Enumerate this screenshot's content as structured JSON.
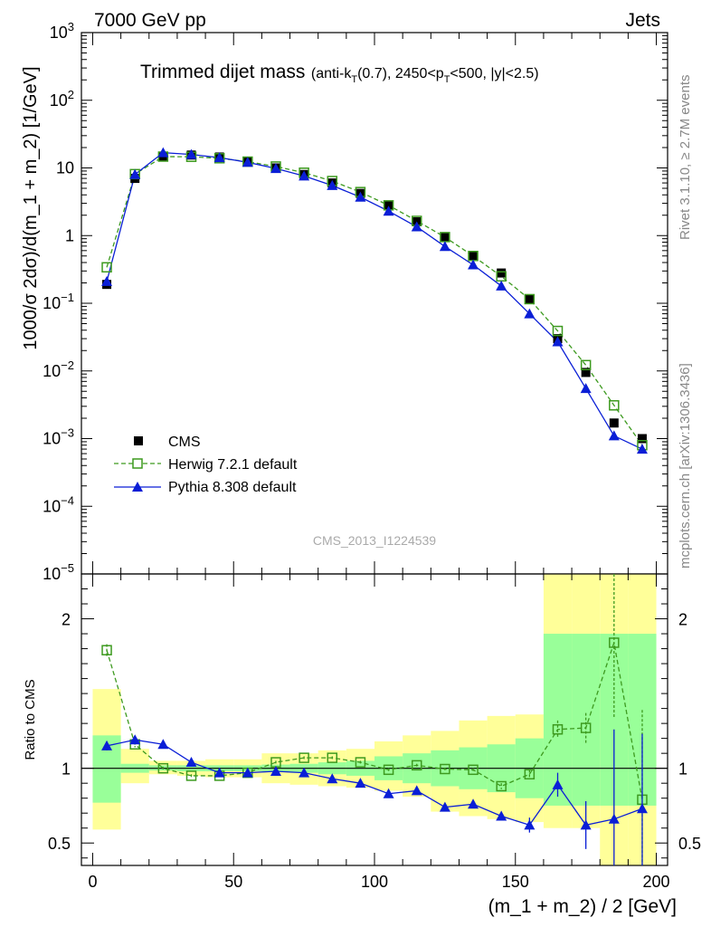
{
  "header": {
    "left": "7000 GeV pp",
    "right": "Jets"
  },
  "side_labels": {
    "rivet": "Rivet 3.1.10, ≥ 2.7M events",
    "mcplots": "mcplots.cern.ch [arXiv:1306.3436]"
  },
  "chart_data": [
    {
      "type": "line",
      "title_main": "Trimmed dijet mass",
      "title_sub_parts": [
        "(anti-k",
        "T",
        "(0.7), 2450<p",
        "T",
        "<500, |y|<2.5)"
      ],
      "watermark": "CMS_2013_I1224539",
      "ylabel": "1000/σ 2dσ)/d(m_1 + m_2) [1/GeV]",
      "yscale": "log",
      "ylim": [
        1e-05,
        1000
      ],
      "xlim": [
        -4,
        204
      ],
      "ytick_labels": [
        {
          "mant": "10",
          "exp": "−5",
          "value": 1e-05
        },
        {
          "mant": "10",
          "exp": "−4",
          "value": 0.0001
        },
        {
          "mant": "10",
          "exp": "−3",
          "value": 0.001
        },
        {
          "mant": "10",
          "exp": "−2",
          "value": 0.01
        },
        {
          "mant": "10",
          "exp": "−1",
          "value": 0.1
        },
        {
          "mant": "1",
          "exp": "",
          "value": 1
        },
        {
          "mant": "10",
          "exp": "",
          "value": 10
        },
        {
          "mant": "10",
          "exp": "2",
          "value": 100
        },
        {
          "mant": "10",
          "exp": "3",
          "value": 1000
        }
      ],
      "legend_position": "bottom-left",
      "x": [
        5,
        15,
        25,
        35,
        45,
        55,
        65,
        75,
        85,
        95,
        105,
        115,
        125,
        135,
        145,
        155,
        165,
        175,
        185,
        195
      ],
      "series": [
        {
          "name": "CMS",
          "marker": "square-filled",
          "color": "#000000",
          "values": [
            0.19,
            7.0,
            14.5,
            15.5,
            14.5,
            12.5,
            10.0,
            8.0,
            6.0,
            4.2,
            2.8,
            1.6,
            0.95,
            0.5,
            0.28,
            0.115,
            0.03,
            0.0095,
            0.0017,
            0.001
          ]
        },
        {
          "name": "Herwig 7.2.1 default",
          "marker": "square-open",
          "line": "dashed",
          "color": "#3d9a1f",
          "values": [
            0.34,
            8.1,
            14.7,
            14.6,
            13.9,
            12.4,
            10.5,
            8.5,
            6.4,
            4.4,
            2.8,
            1.65,
            0.95,
            0.5,
            0.25,
            0.115,
            0.039,
            0.0122,
            0.0031,
            0.0008
          ]
        },
        {
          "name": "Pythia 8.308 default",
          "marker": "triangle-filled",
          "line": "solid",
          "color": "#0a1ed6",
          "values": [
            0.21,
            8.0,
            16.8,
            15.8,
            14.2,
            12.1,
            9.8,
            7.6,
            5.5,
            3.7,
            2.3,
            1.35,
            0.69,
            0.37,
            0.18,
            0.07,
            0.027,
            0.0055,
            0.0011,
            0.0007
          ]
        }
      ]
    },
    {
      "type": "line",
      "ylabel": "Ratio to CMS",
      "xlabel": "(m_1 + m_2) / 2 [GeV]",
      "ylim": [
        0.35,
        2.3
      ],
      "xlim": [
        -4,
        204
      ],
      "xticks": [
        0,
        50,
        100,
        150,
        200
      ],
      "yticks": [
        0.5,
        1,
        2
      ],
      "x": [
        5,
        15,
        25,
        35,
        45,
        55,
        65,
        75,
        85,
        95,
        105,
        115,
        125,
        135,
        145,
        155,
        165,
        175,
        185,
        195
      ],
      "bin_edges": [
        0,
        10,
        20,
        30,
        40,
        50,
        60,
        70,
        80,
        90,
        100,
        110,
        120,
        130,
        140,
        150,
        160,
        170,
        180,
        190,
        200
      ],
      "band_stat": [
        [
          0.77,
          1.22
        ],
        [
          0.97,
          1.03
        ],
        [
          0.985,
          1.02
        ],
        [
          0.98,
          1.02
        ],
        [
          0.98,
          1.02
        ],
        [
          0.98,
          1.02
        ],
        [
          0.975,
          1.025
        ],
        [
          0.97,
          1.03
        ],
        [
          0.96,
          1.04
        ],
        [
          0.95,
          1.05
        ],
        [
          0.92,
          1.08
        ],
        [
          0.9,
          1.1
        ],
        [
          0.88,
          1.12
        ],
        [
          0.86,
          1.14
        ],
        [
          0.84,
          1.16
        ],
        [
          0.8,
          1.2
        ],
        [
          0.75,
          1.9
        ],
        [
          0.75,
          1.9
        ],
        [
          0.75,
          1.9
        ],
        [
          0.75,
          1.9
        ]
      ],
      "band_total": [
        [
          0.59,
          1.53
        ],
        [
          0.9,
          1.13
        ],
        [
          0.96,
          1.05
        ],
        [
          0.95,
          1.05
        ],
        [
          0.94,
          1.06
        ],
        [
          0.94,
          1.06
        ],
        [
          0.9,
          1.1
        ],
        [
          0.89,
          1.1
        ],
        [
          0.88,
          1.12
        ],
        [
          0.87,
          1.13
        ],
        [
          0.85,
          1.18
        ],
        [
          0.81,
          1.22
        ],
        [
          0.71,
          1.25
        ],
        [
          0.68,
          1.32
        ],
        [
          0.66,
          1.35
        ],
        [
          0.64,
          1.36
        ],
        [
          0.6,
          2.3
        ],
        [
          0.6,
          2.3
        ],
        [
          0.35,
          2.3
        ],
        [
          0.35,
          2.3
        ]
      ],
      "series": [
        {
          "name": "Herwig 7.2.1 default",
          "marker": "square-open",
          "line": "dashed",
          "color": "#3d9a1f",
          "values": [
            1.79,
            1.16,
            1.0,
            0.95,
            0.95,
            0.97,
            1.04,
            1.07,
            1.07,
            1.04,
            0.99,
            1.02,
            0.995,
            0.99,
            0.88,
            0.96,
            1.26,
            1.27,
            1.84,
            0.79
          ],
          "err": [
            0.04,
            0.02,
            0.01,
            0.01,
            0.01,
            0.01,
            0.01,
            0.01,
            0.01,
            0.01,
            0.01,
            0.01,
            0.01,
            0.01,
            0.02,
            0.03,
            0.06,
            0.1,
            0.5,
            0.6
          ]
        },
        {
          "name": "Pythia 8.308 default",
          "marker": "triangle-filled",
          "line": "solid",
          "color": "#0a1ed6",
          "values": [
            1.15,
            1.19,
            1.16,
            1.04,
            0.97,
            0.97,
            0.98,
            0.97,
            0.93,
            0.9,
            0.83,
            0.85,
            0.74,
            0.76,
            0.68,
            0.62,
            0.89,
            0.62,
            0.66,
            0.73
          ],
          "err": [
            0.03,
            0.02,
            0.01,
            0.01,
            0.01,
            0.01,
            0.01,
            0.01,
            0.01,
            0.01,
            0.01,
            0.01,
            0.01,
            0.02,
            0.03,
            0.05,
            0.08,
            0.16,
            0.6,
            0.5
          ]
        }
      ]
    }
  ]
}
